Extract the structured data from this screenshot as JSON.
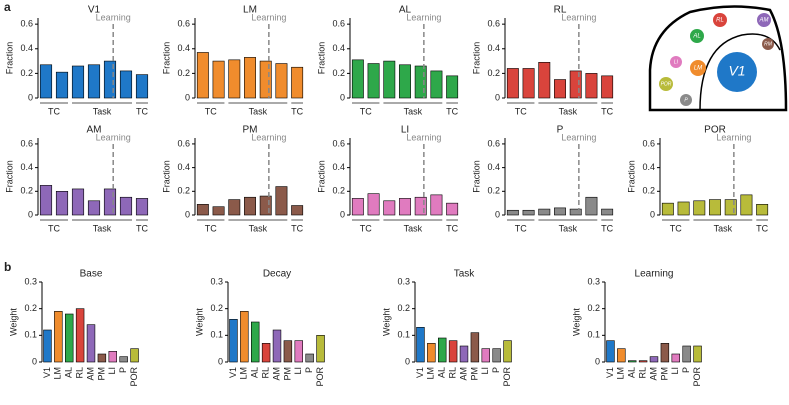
{
  "panels": [
    "a",
    "b"
  ],
  "map": {
    "labels": [
      "V1",
      "LM",
      "AL",
      "RL",
      "AM",
      "RM",
      "LI",
      "POR",
      "P"
    ]
  },
  "chart_data": [
    {
      "type": "bar",
      "title": "V1",
      "ylabel": "Fraction",
      "color": "#1f78c8",
      "categories": [
        null,
        null,
        null,
        null,
        null,
        null,
        null
      ],
      "values": [
        0.27,
        0.21,
        0.26,
        0.27,
        0.3,
        0.22,
        0.19
      ],
      "ylim": [
        0,
        0.65
      ],
      "yticks": [
        0,
        0.2,
        0.4,
        0.6
      ],
      "annotation": "Learning",
      "groups": [
        "TC",
        "Task",
        "TC"
      ]
    },
    {
      "type": "bar",
      "title": "LM",
      "ylabel": "Fraction",
      "color": "#f08c2d",
      "categories": [
        null,
        null,
        null,
        null,
        null,
        null,
        null
      ],
      "values": [
        0.37,
        0.3,
        0.31,
        0.33,
        0.3,
        0.28,
        0.25
      ],
      "ylim": [
        0,
        0.65
      ],
      "yticks": [
        0,
        0.2,
        0.4,
        0.6
      ],
      "annotation": "Learning",
      "groups": [
        "TC",
        "Task",
        "TC"
      ]
    },
    {
      "type": "bar",
      "title": "AL",
      "ylabel": "Fraction",
      "color": "#2ea84a",
      "categories": [
        null,
        null,
        null,
        null,
        null,
        null,
        null
      ],
      "values": [
        0.31,
        0.28,
        0.3,
        0.27,
        0.26,
        0.22,
        0.18
      ],
      "ylim": [
        0,
        0.65
      ],
      "yticks": [
        0,
        0.2,
        0.4,
        0.6
      ],
      "annotation": "Learning",
      "groups": [
        "TC",
        "Task",
        "TC"
      ]
    },
    {
      "type": "bar",
      "title": "RL",
      "ylabel": "Fraction",
      "color": "#d9443c",
      "categories": [
        null,
        null,
        null,
        null,
        null,
        null,
        null
      ],
      "values": [
        0.24,
        0.24,
        0.29,
        0.15,
        0.22,
        0.2,
        0.18
      ],
      "ylim": [
        0,
        0.65
      ],
      "yticks": [
        0,
        0.2,
        0.4,
        0.6
      ],
      "annotation": "Learning",
      "groups": [
        "TC",
        "Task",
        "TC"
      ]
    },
    {
      "type": "bar",
      "title": "AM",
      "ylabel": "Fraction",
      "color": "#8e68b8",
      "categories": [
        null,
        null,
        null,
        null,
        null,
        null,
        null
      ],
      "values": [
        0.25,
        0.2,
        0.22,
        0.12,
        0.22,
        0.15,
        0.14
      ],
      "ylim": [
        0,
        0.65
      ],
      "yticks": [
        0,
        0.2,
        0.4,
        0.6
      ],
      "annotation": "Learning",
      "groups": [
        "TC",
        "Task",
        "TC"
      ]
    },
    {
      "type": "bar",
      "title": "PM",
      "ylabel": "Fraction",
      "color": "#8b5a4a",
      "categories": [
        null,
        null,
        null,
        null,
        null,
        null,
        null
      ],
      "values": [
        0.09,
        0.07,
        0.13,
        0.15,
        0.16,
        0.24,
        0.08
      ],
      "ylim": [
        0,
        0.65
      ],
      "yticks": [
        0,
        0.2,
        0.4,
        0.6
      ],
      "annotation": "Learning",
      "groups": [
        "TC",
        "Task",
        "TC"
      ]
    },
    {
      "type": "bar",
      "title": "LI",
      "ylabel": "Fraction",
      "color": "#e07bbf",
      "categories": [
        null,
        null,
        null,
        null,
        null,
        null,
        null
      ],
      "values": [
        0.14,
        0.18,
        0.12,
        0.14,
        0.15,
        0.17,
        0.1
      ],
      "ylim": [
        0,
        0.65
      ],
      "yticks": [
        0,
        0.2,
        0.4,
        0.6
      ],
      "annotation": "Learning",
      "groups": [
        "TC",
        "Task",
        "TC"
      ]
    },
    {
      "type": "bar",
      "title": "P",
      "ylabel": "Fraction",
      "color": "#8a8a8a",
      "categories": [
        null,
        null,
        null,
        null,
        null,
        null,
        null
      ],
      "values": [
        0.04,
        0.04,
        0.05,
        0.06,
        0.05,
        0.15,
        0.05
      ],
      "ylim": [
        0,
        0.65
      ],
      "yticks": [
        0,
        0.2,
        0.4,
        0.6
      ],
      "annotation": "Learning",
      "groups": [
        "TC",
        "Task",
        "TC"
      ]
    },
    {
      "type": "bar",
      "title": "POR",
      "ylabel": "Fraction",
      "color": "#b8bb3a",
      "categories": [
        null,
        null,
        null,
        null,
        null,
        null,
        null
      ],
      "values": [
        0.1,
        0.11,
        0.12,
        0.13,
        0.13,
        0.17,
        0.09
      ],
      "ylim": [
        0,
        0.65
      ],
      "yticks": [
        0,
        0.2,
        0.4,
        0.6
      ],
      "annotation": "Learning",
      "groups": [
        "TC",
        "Task",
        "TC"
      ]
    },
    {
      "type": "bar",
      "title": "Base",
      "ylabel": "Weight",
      "categories": [
        "V1",
        "LM",
        "AL",
        "RL",
        "AM",
        "PM",
        "LI",
        "P",
        "POR"
      ],
      "colors": [
        "#1f78c8",
        "#f08c2d",
        "#2ea84a",
        "#d9443c",
        "#8e68b8",
        "#8b5a4a",
        "#e07bbf",
        "#8a8a8a",
        "#b8bb3a"
      ],
      "values": [
        0.12,
        0.19,
        0.18,
        0.2,
        0.14,
        0.03,
        0.04,
        0.02,
        0.05
      ],
      "ylim": [
        0,
        0.3
      ],
      "yticks": [
        0,
        0.1,
        0.2,
        0.3
      ]
    },
    {
      "type": "bar",
      "title": "Decay",
      "ylabel": "Weight",
      "categories": [
        "V1",
        "LM",
        "AL",
        "RL",
        "AM",
        "PM",
        "LI",
        "P",
        "POR"
      ],
      "colors": [
        "#1f78c8",
        "#f08c2d",
        "#2ea84a",
        "#d9443c",
        "#8e68b8",
        "#8b5a4a",
        "#e07bbf",
        "#8a8a8a",
        "#b8bb3a"
      ],
      "values": [
        0.16,
        0.19,
        0.15,
        0.07,
        0.12,
        0.08,
        0.08,
        0.03,
        0.1
      ],
      "ylim": [
        0,
        0.3
      ],
      "yticks": [
        0,
        0.1,
        0.2,
        0.3
      ]
    },
    {
      "type": "bar",
      "title": "Task",
      "ylabel": "Weight",
      "categories": [
        "V1",
        "LM",
        "AL",
        "RL",
        "AM",
        "PM",
        "LI",
        "P",
        "POR"
      ],
      "colors": [
        "#1f78c8",
        "#f08c2d",
        "#2ea84a",
        "#d9443c",
        "#8e68b8",
        "#8b5a4a",
        "#e07bbf",
        "#8a8a8a",
        "#b8bb3a"
      ],
      "values": [
        0.13,
        0.07,
        0.09,
        0.08,
        0.06,
        0.11,
        0.05,
        0.05,
        0.08
      ],
      "ylim": [
        0,
        0.3
      ],
      "yticks": [
        0,
        0.1,
        0.2,
        0.3
      ]
    },
    {
      "type": "bar",
      "title": "Learning",
      "ylabel": "Weight",
      "categories": [
        "V1",
        "LM",
        "AL",
        "RL",
        "AM",
        "PM",
        "LI",
        "P",
        "POR"
      ],
      "colors": [
        "#1f78c8",
        "#f08c2d",
        "#2ea84a",
        "#d9443c",
        "#8e68b8",
        "#8b5a4a",
        "#e07bbf",
        "#8a8a8a",
        "#b8bb3a"
      ],
      "values": [
        0.08,
        0.05,
        0.005,
        0.005,
        0.02,
        0.07,
        0.03,
        0.06,
        0.06
      ],
      "ylim": [
        0,
        0.3
      ],
      "yticks": [
        0,
        0.1,
        0.2,
        0.3
      ]
    }
  ]
}
